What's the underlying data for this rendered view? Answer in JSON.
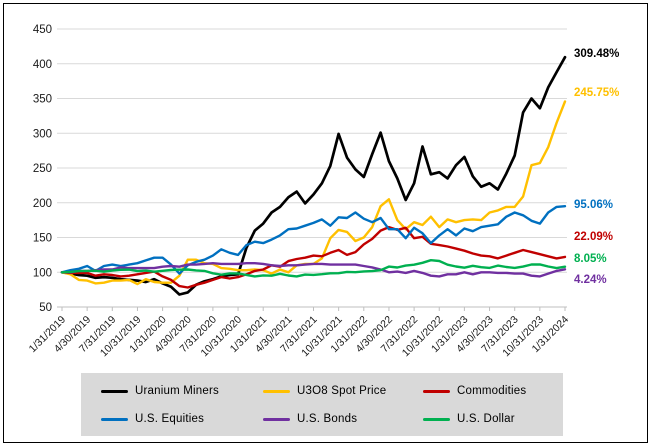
{
  "chart_data": {
    "type": "line",
    "title": "",
    "xlabel": "",
    "ylabel": "",
    "ylim": [
      50,
      450
    ],
    "y_step": 50,
    "grid": true,
    "legend_position": "bottom",
    "x_frequency": "monthly",
    "x_start": "1/31/2019",
    "x_end": "1/31/2024",
    "x_tick_labels": [
      "1/31/2019",
      "4/30/2019",
      "7/31/2019",
      "10/31/2019",
      "1/31/2020",
      "4/30/2020",
      "7/31/2020",
      "10/31/2020",
      "1/31/2021",
      "4/30/2021",
      "7/31/2021",
      "10/31/2021",
      "1/31/2022",
      "4/30/2022",
      "7/31/2022",
      "10/31/2022",
      "1/31/2023",
      "4/30/2023",
      "7/31/2023",
      "10/31/2023",
      "1/31/2024"
    ],
    "months_per_tick": 3,
    "series": [
      {
        "name": "Uranium Miners",
        "color": "#000000",
        "end_label": "309.48%",
        "values": [
          100,
          98,
          96,
          95,
          92,
          93,
          92,
          90,
          89,
          88,
          86,
          90,
          84,
          79,
          68,
          71,
          82,
          87,
          90,
          94,
          96,
          97,
          135,
          160,
          170,
          186,
          194,
          208,
          216,
          199,
          212,
          228,
          253,
          299,
          265,
          248,
          237,
          270,
          301,
          260,
          235,
          204,
          228,
          281,
          241,
          244,
          235,
          254,
          266,
          238,
          223,
          228,
          219,
          242,
          268,
          330,
          350,
          336,
          366,
          388,
          409.48
        ]
      },
      {
        "name": "U3O8 Spot Price",
        "color": "#ffc000",
        "end_label": "245.75%",
        "values": [
          100,
          97,
          89,
          88,
          84,
          85,
          88,
          88,
          89,
          83,
          90,
          86,
          85,
          85,
          95,
          118,
          118,
          113,
          112,
          106,
          105,
          103,
          103,
          104,
          103,
          98,
          104,
          100,
          110,
          112,
          112,
          120,
          149,
          161,
          158,
          145,
          150,
          165,
          195,
          205,
          175,
          162,
          172,
          168,
          180,
          165,
          176,
          172,
          175,
          176,
          175,
          186,
          189,
          194,
          194,
          209,
          254,
          257,
          280,
          315,
          345.75
        ]
      },
      {
        "name": "Commodities",
        "color": "#c00000",
        "end_label": "22.09%",
        "values": [
          100,
          99,
          99,
          99,
          95,
          97,
          96,
          94,
          95,
          97,
          99,
          101,
          94,
          89,
          80,
          78,
          82,
          85,
          89,
          93,
          91,
          93,
          97,
          102,
          104,
          110,
          108,
          116,
          119,
          121,
          124,
          123,
          128,
          132,
          125,
          129,
          140,
          148,
          160,
          165,
          161,
          164,
          149,
          151,
          141,
          139,
          137,
          134,
          131,
          127,
          124,
          123,
          120,
          124,
          128,
          132,
          129,
          126,
          123,
          120,
          122.09
        ]
      },
      {
        "name": "U.S. Equities",
        "color": "#0070c0",
        "end_label": "95.06%",
        "values": [
          100,
          103,
          105,
          109,
          102,
          109,
          111,
          109,
          111,
          113,
          117,
          121,
          121,
          111,
          98,
          110,
          115,
          118,
          124,
          133,
          128,
          125,
          139,
          144,
          142,
          147,
          153,
          162,
          163,
          167,
          171,
          176,
          167,
          179,
          178,
          186,
          177,
          172,
          178,
          162,
          162,
          149,
          164,
          156,
          142,
          153,
          162,
          153,
          163,
          159,
          165,
          167,
          169,
          180,
          186,
          182,
          174,
          170,
          186,
          194,
          195.06
        ]
      },
      {
        "name": "U.S. Bonds",
        "color": "#7030a0",
        "end_label": "4.24%",
        "values": [
          100,
          100,
          102,
          102,
          103,
          104,
          104,
          107,
          106,
          106,
          106,
          106,
          108,
          109,
          108,
          111,
          111,
          112,
          113,
          112,
          112,
          112,
          113,
          113,
          112,
          110,
          109,
          110,
          110,
          111,
          112,
          112,
          111,
          111,
          111,
          111,
          109,
          107,
          104,
          100,
          101,
          99,
          102,
          99,
          95,
          94,
          97,
          97,
          100,
          97,
          100,
          100,
          99,
          99,
          98,
          98,
          95,
          94,
          98,
          102,
          104.24
        ]
      },
      {
        "name": "U.S. Dollar",
        "color": "#00b050",
        "end_label": "8.05%",
        "values": [
          100,
          100.5,
          101.7,
          101.9,
          102.3,
          100.8,
          102.5,
          103.5,
          103.8,
          101.7,
          102.4,
          100.8,
          102.1,
          103.2,
          103.7,
          103.9,
          102.7,
          101.9,
          98.5,
          96.5,
          98.3,
          98.4,
          96.2,
          94.1,
          95.4,
          95.1,
          97.7,
          95.3,
          94.1,
          96.6,
          96.2,
          97.2,
          98.5,
          98.6,
          100.5,
          100.1,
          101.2,
          101.6,
          102.9,
          108.1,
          106.8,
          109.5,
          110.8,
          113.6,
          117.3,
          116.2,
          110.8,
          108.3,
          106.5,
          109.3,
          107.3,
          106.3,
          109.5,
          107.6,
          106.3,
          108.2,
          111.2,
          111.3,
          108.3,
          106,
          108.05
        ]
      }
    ]
  },
  "legend": {
    "order": [
      "Uranium Miners",
      "U3O8 Spot Price",
      "Commodities",
      "U.S. Equities",
      "U.S. Bonds",
      "U.S. Dollar"
    ]
  }
}
